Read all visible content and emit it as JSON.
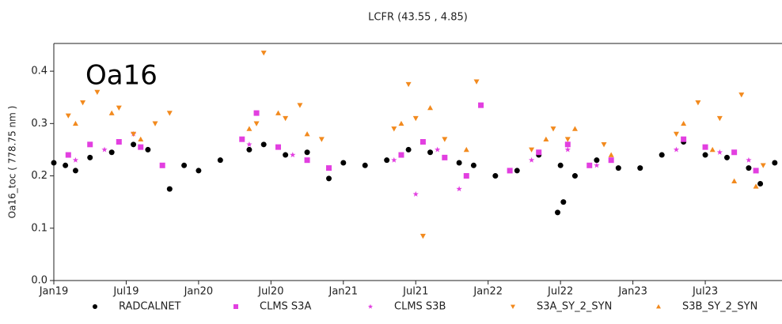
{
  "chart_data": {
    "type": "scatter",
    "title": "LCFR (43.55 ,  4.85)",
    "annotation": "Oa16",
    "y_label": "Oa16_toc ( 778.75 nm )",
    "xlim": [
      2019,
      2024.03
    ],
    "ylim": [
      0,
      0.453
    ],
    "xticks": [
      {
        "value": 2019,
        "label": "Jan19"
      },
      {
        "value": 2019.5,
        "label": "Jul19"
      },
      {
        "value": 2020,
        "label": "Jan20"
      },
      {
        "value": 2020.5,
        "label": "Jul20"
      },
      {
        "value": 2021,
        "label": "Jan21"
      },
      {
        "value": 2021.5,
        "label": "Jul21"
      },
      {
        "value": 2022,
        "label": "Jan22"
      },
      {
        "value": 2022.5,
        "label": "Jul22"
      },
      {
        "value": 2023,
        "label": "Jan23"
      },
      {
        "value": 2023.5,
        "label": "Jul23"
      }
    ],
    "yticks": [
      {
        "value": 0,
        "label": "0.0"
      },
      0.1,
      0.2,
      0.3,
      0.4
    ],
    "series": [
      {
        "name": "RADCALNET",
        "color": "#000000",
        "marker": "circle",
        "x": [
          2019.0,
          2019.08,
          2019.15,
          2019.25,
          2019.4,
          2019.55,
          2019.65,
          2019.8,
          2019.9,
          2020.0,
          2020.15,
          2020.35,
          2020.45,
          2020.6,
          2020.75,
          2020.9,
          2021.0,
          2021.15,
          2021.3,
          2021.45,
          2021.6,
          2021.8,
          2021.9,
          2022.05,
          2022.2,
          2022.35,
          2022.5,
          2022.52,
          2022.48,
          2022.6,
          2022.75,
          2022.9,
          2023.05,
          2023.2,
          2023.35,
          2023.5,
          2023.65,
          2023.8,
          2023.88,
          2023.98
        ],
        "values": [
          0.225,
          0.22,
          0.21,
          0.235,
          0.245,
          0.26,
          0.25,
          0.175,
          0.22,
          0.21,
          0.23,
          0.25,
          0.26,
          0.24,
          0.245,
          0.195,
          0.225,
          0.22,
          0.23,
          0.25,
          0.245,
          0.225,
          0.22,
          0.2,
          0.21,
          0.24,
          0.22,
          0.15,
          0.13,
          0.2,
          0.23,
          0.215,
          0.215,
          0.24,
          0.265,
          0.24,
          0.235,
          0.215,
          0.185,
          0.225
        ]
      },
      {
        "name": "CLMS S3A",
        "color": "#e23fe0",
        "marker": "square",
        "x": [
          2019.1,
          2019.25,
          2019.45,
          2019.6,
          2019.75,
          2020.3,
          2020.4,
          2020.55,
          2020.75,
          2020.9,
          2021.4,
          2021.55,
          2021.7,
          2021.85,
          2021.95,
          2022.15,
          2022.35,
          2022.55,
          2022.7,
          2022.85,
          2023.35,
          2023.5,
          2023.7,
          2023.85
        ],
        "values": [
          0.24,
          0.26,
          0.265,
          0.255,
          0.22,
          0.27,
          0.32,
          0.255,
          0.23,
          0.215,
          0.24,
          0.265,
          0.235,
          0.2,
          0.335,
          0.21,
          0.245,
          0.26,
          0.22,
          0.23,
          0.27,
          0.255,
          0.245,
          0.21
        ]
      },
      {
        "name": "CLMS S3B",
        "color": "#e23fe0",
        "marker": "star",
        "x": [
          2019.15,
          2019.35,
          2019.55,
          2020.35,
          2020.65,
          2021.35,
          2021.5,
          2021.65,
          2021.8,
          2022.3,
          2022.55,
          2022.75,
          2023.3,
          2023.6,
          2023.8
        ],
        "values": [
          0.23,
          0.25,
          0.28,
          0.26,
          0.24,
          0.23,
          0.165,
          0.25,
          0.175,
          0.23,
          0.25,
          0.22,
          0.25,
          0.245,
          0.23
        ]
      },
      {
        "name": "S3A_SY_2_SYN",
        "color": "#f28a1e",
        "marker": "tri-down",
        "x": [
          2019.1,
          2019.2,
          2019.3,
          2019.45,
          2019.55,
          2019.7,
          2019.8,
          2020.4,
          2020.45,
          2020.6,
          2020.7,
          2020.85,
          2021.35,
          2021.45,
          2021.5,
          2021.55,
          2021.7,
          2021.92,
          2022.3,
          2022.45,
          2022.55,
          2022.8,
          2023.3,
          2023.45,
          2023.6,
          2023.75,
          2023.9
        ],
        "values": [
          0.315,
          0.34,
          0.36,
          0.33,
          0.28,
          0.3,
          0.32,
          0.3,
          0.435,
          0.31,
          0.335,
          0.27,
          0.29,
          0.375,
          0.31,
          0.085,
          0.27,
          0.38,
          0.25,
          0.29,
          0.27,
          0.26,
          0.28,
          0.34,
          0.31,
          0.355,
          0.22
        ]
      },
      {
        "name": "S3B_SY_2_SYN",
        "color": "#f28a1e",
        "marker": "tri-up",
        "x": [
          2019.15,
          2019.4,
          2019.6,
          2020.35,
          2020.55,
          2020.75,
          2021.4,
          2021.6,
          2021.85,
          2022.4,
          2022.6,
          2022.85,
          2023.35,
          2023.55,
          2023.7,
          2023.85
        ],
        "values": [
          0.3,
          0.32,
          0.27,
          0.29,
          0.32,
          0.28,
          0.3,
          0.33,
          0.25,
          0.27,
          0.29,
          0.24,
          0.3,
          0.25,
          0.19,
          0.18
        ]
      }
    ]
  }
}
